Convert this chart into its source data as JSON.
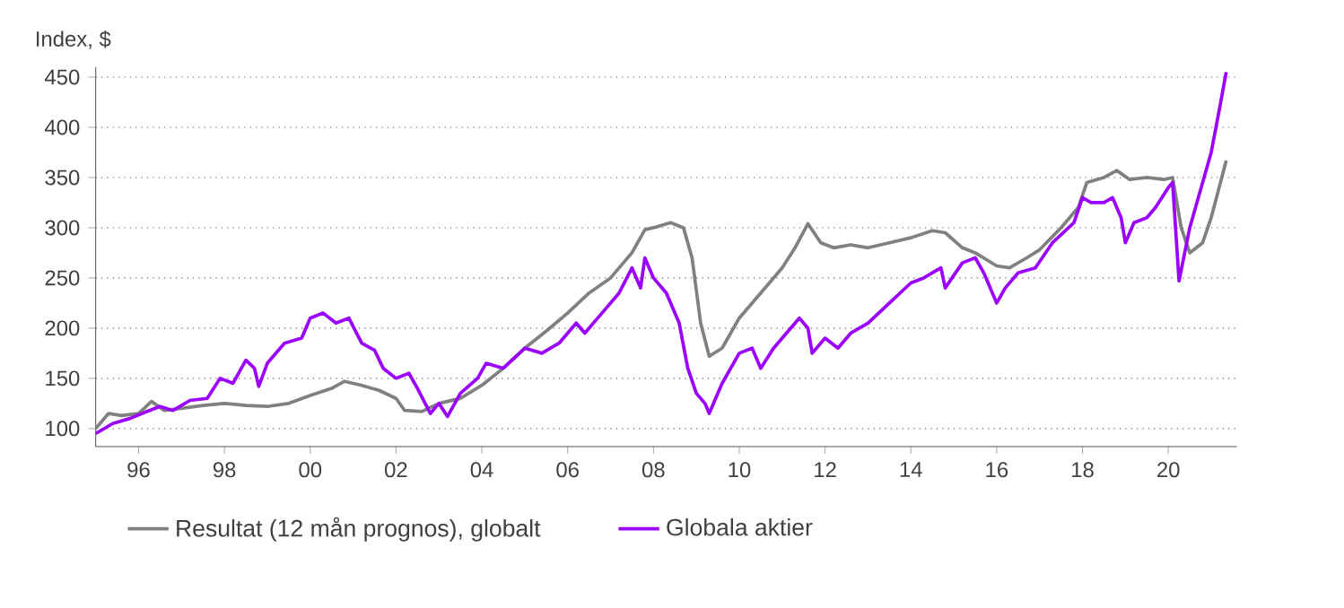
{
  "chart_data": {
    "type": "line",
    "ylabel": "Index, $",
    "xlim": [
      1995.0,
      2021.6
    ],
    "xticks": [
      {
        "value": 1996,
        "label": "96"
      },
      {
        "value": 1998,
        "label": "98"
      },
      {
        "value": 2000,
        "label": "00"
      },
      {
        "value": 2002,
        "label": "02"
      },
      {
        "value": 2004,
        "label": "04"
      },
      {
        "value": 2006,
        "label": "06"
      },
      {
        "value": 2008,
        "label": "08"
      },
      {
        "value": 2010,
        "label": "10"
      },
      {
        "value": 2012,
        "label": "12"
      },
      {
        "value": 2014,
        "label": "14"
      },
      {
        "value": 2016,
        "label": "16"
      },
      {
        "value": 2018,
        "label": "18"
      },
      {
        "value": 2020,
        "label": "20"
      }
    ],
    "ylim": [
      82,
      460
    ],
    "yticks": [
      100,
      150,
      200,
      250,
      300,
      350,
      400,
      450
    ],
    "grid": "y",
    "legend": "bottom",
    "marker": "none",
    "line_style": "solid",
    "series": [
      {
        "name": "Resultat (12 mån prognos), globalt",
        "color": "#808080",
        "x": [
          1995.0,
          1995.3,
          1995.6,
          1996.0,
          1996.3,
          1996.6,
          1997.0,
          1997.5,
          1998.0,
          1998.5,
          1999.0,
          1999.5,
          2000.0,
          2000.5,
          2000.8,
          2001.2,
          2001.6,
          2002.0,
          2002.2,
          2002.6,
          2003.0,
          2003.5,
          2004.0,
          2004.5,
          2005.0,
          2005.5,
          2006.0,
          2006.5,
          2007.0,
          2007.5,
          2007.8,
          2008.0,
          2008.4,
          2008.7,
          2008.9,
          2009.1,
          2009.3,
          2009.6,
          2010.0,
          2010.5,
          2011.0,
          2011.3,
          2011.6,
          2011.9,
          2012.2,
          2012.6,
          2013.0,
          2013.5,
          2014.0,
          2014.5,
          2014.8,
          2015.2,
          2015.5,
          2016.0,
          2016.3,
          2016.7,
          2017.0,
          2017.5,
          2017.9,
          2018.1,
          2018.5,
          2018.8,
          2019.1,
          2019.5,
          2019.9,
          2020.1,
          2020.3,
          2020.5,
          2020.8,
          2021.0,
          2021.35
        ],
        "values": [
          100,
          115,
          113,
          115,
          127,
          118,
          120,
          123,
          125,
          123,
          122,
          125,
          133,
          140,
          147,
          143,
          138,
          130,
          118,
          117,
          125,
          130,
          143,
          160,
          180,
          197,
          215,
          235,
          250,
          275,
          298,
          300,
          305,
          300,
          270,
          205,
          172,
          180,
          210,
          235,
          260,
          280,
          304,
          285,
          280,
          283,
          280,
          285,
          290,
          297,
          295,
          280,
          275,
          262,
          260,
          270,
          278,
          300,
          320,
          345,
          350,
          357,
          348,
          350,
          348,
          350,
          300,
          275,
          285,
          310,
          367
        ]
      },
      {
        "name": "Globala aktier",
        "color": "#9b00ff",
        "x": [
          1995.0,
          1995.4,
          1995.8,
          1996.2,
          1996.5,
          1996.8,
          1997.2,
          1997.6,
          1997.9,
          1998.2,
          1998.5,
          1998.7,
          1998.8,
          1999.0,
          1999.4,
          1999.8,
          2000.0,
          2000.3,
          2000.6,
          2000.9,
          2001.2,
          2001.5,
          2001.7,
          2002.0,
          2002.3,
          2002.5,
          2002.8,
          2003.0,
          2003.2,
          2003.5,
          2003.9,
          2004.1,
          2004.5,
          2005.0,
          2005.4,
          2005.8,
          2006.2,
          2006.4,
          2006.8,
          2007.2,
          2007.5,
          2007.7,
          2007.8,
          2008.0,
          2008.3,
          2008.6,
          2008.8,
          2009.0,
          2009.2,
          2009.3,
          2009.6,
          2010.0,
          2010.3,
          2010.5,
          2010.8,
          2011.2,
          2011.4,
          2011.6,
          2011.7,
          2012.0,
          2012.3,
          2012.6,
          2013.0,
          2013.5,
          2014.0,
          2014.3,
          2014.7,
          2014.8,
          2015.2,
          2015.5,
          2015.7,
          2016.0,
          2016.2,
          2016.5,
          2016.9,
          2017.3,
          2017.8,
          2018.0,
          2018.2,
          2018.5,
          2018.7,
          2018.9,
          2019.0,
          2019.2,
          2019.5,
          2019.7,
          2020.0,
          2020.1,
          2020.25,
          2020.5,
          2020.8,
          2021.0,
          2021.2,
          2021.35
        ],
        "values": [
          95,
          105,
          110,
          117,
          122,
          118,
          128,
          130,
          150,
          145,
          168,
          160,
          142,
          165,
          185,
          190,
          210,
          215,
          205,
          210,
          185,
          178,
          160,
          150,
          155,
          140,
          115,
          125,
          112,
          135,
          150,
          165,
          160,
          180,
          175,
          185,
          205,
          195,
          215,
          235,
          260,
          240,
          270,
          250,
          235,
          205,
          160,
          135,
          125,
          115,
          145,
          175,
          180,
          160,
          180,
          200,
          210,
          200,
          175,
          190,
          180,
          195,
          205,
          225,
          245,
          250,
          260,
          240,
          265,
          270,
          255,
          225,
          240,
          255,
          260,
          285,
          305,
          330,
          325,
          325,
          330,
          310,
          285,
          305,
          310,
          320,
          340,
          345,
          247,
          300,
          345,
          375,
          420,
          455
        ]
      }
    ]
  }
}
